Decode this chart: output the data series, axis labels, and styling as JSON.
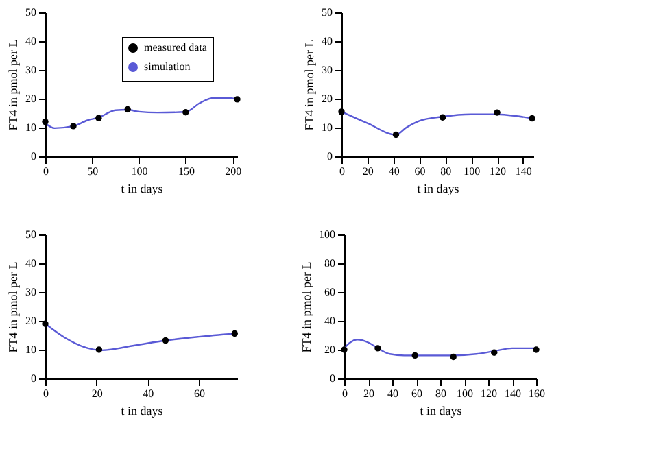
{
  "chart_data": [
    {
      "type": "line",
      "xlabel": "t in days",
      "ylabel": "FT4 in pmol per L",
      "xlim": [
        0,
        205
      ],
      "ylim": [
        0,
        50
      ],
      "xticks": [
        0,
        50,
        100,
        150,
        200
      ],
      "yticks": [
        0,
        10,
        20,
        30,
        40,
        50
      ],
      "grid": false,
      "legend": "top right",
      "series": [
        {
          "name": "measured data",
          "type": "scatter",
          "marker": "circle",
          "color": "#000000",
          "x": [
            0,
            30,
            57,
            88,
            150,
            205
          ],
          "values": [
            12,
            10.5,
            13.3,
            16.3,
            15.3,
            19.8
          ]
        },
        {
          "name": "simulation",
          "type": "line",
          "color": "#5a5ad6",
          "x": [
            0,
            10,
            30,
            45,
            57,
            75,
            88,
            100,
            120,
            150,
            165,
            180,
            195,
            205
          ],
          "values": [
            11.5,
            9.8,
            10.5,
            12.5,
            13.5,
            16,
            16.2,
            15.5,
            15.2,
            15.4,
            18.5,
            20.3,
            20.3,
            19.8
          ]
        }
      ]
    },
    {
      "type": "line",
      "xlabel": "t in days",
      "ylabel": "FT4 in pmol per L",
      "xlim": [
        0,
        148
      ],
      "ylim": [
        0,
        50
      ],
      "xticks": [
        0,
        20,
        40,
        60,
        80,
        100,
        120,
        140
      ],
      "yticks": [
        0,
        10,
        20,
        30,
        40,
        50
      ],
      "grid": false,
      "series": [
        {
          "type": "scatter",
          "marker": "circle",
          "color": "#000000",
          "x": [
            0,
            42,
            78,
            120,
            147
          ],
          "values": [
            15.5,
            7.5,
            13.5,
            15.2,
            13.2
          ]
        },
        {
          "type": "line",
          "color": "#5a5ad6",
          "x": [
            0,
            20,
            42,
            50,
            60,
            78,
            100,
            120,
            135,
            147
          ],
          "values": [
            15.5,
            11.5,
            7.5,
            10,
            12.3,
            13.8,
            14.6,
            14.6,
            14,
            13.2
          ]
        }
      ]
    },
    {
      "type": "line",
      "xlabel": "t in days",
      "ylabel": "FT4 in pmol per L",
      "xlim": [
        0,
        75
      ],
      "ylim": [
        0,
        50
      ],
      "xticks": [
        0,
        20,
        40,
        60
      ],
      "yticks": [
        0,
        10,
        20,
        30,
        40,
        50
      ],
      "grid": false,
      "series": [
        {
          "type": "scatter",
          "marker": "circle",
          "color": "#000000",
          "x": [
            0,
            21,
            47,
            74
          ],
          "values": [
            19,
            10,
            13.2,
            15.6
          ]
        },
        {
          "type": "line",
          "color": "#5a5ad6",
          "x": [
            0,
            8,
            15,
            22,
            35,
            47,
            60,
            74
          ],
          "values": [
            19,
            14,
            11,
            9.8,
            11.5,
            13.2,
            14.5,
            15.6
          ]
        }
      ]
    },
    {
      "type": "line",
      "xlabel": "t in days",
      "ylabel": "FT4 in pmol per L",
      "xlim": [
        0,
        160
      ],
      "ylim": [
        0,
        100
      ],
      "xticks": [
        0,
        20,
        40,
        60,
        80,
        100,
        120,
        140,
        160
      ],
      "yticks": [
        0,
        20,
        40,
        60,
        80,
        100
      ],
      "grid": false,
      "series": [
        {
          "type": "scatter",
          "marker": "circle",
          "color": "#000000",
          "x": [
            0,
            28,
            59,
            91,
            125,
            160
          ],
          "values": [
            20,
            21,
            16,
            15,
            18,
            20
          ]
        },
        {
          "type": "line",
          "color": "#5a5ad6",
          "x": [
            0,
            5,
            11,
            20,
            28,
            38,
            50,
            70,
            91,
            110,
            125,
            140,
            160
          ],
          "values": [
            21,
            25,
            27,
            25,
            21,
            17,
            16,
            16,
            16,
            17,
            19,
            21,
            21
          ]
        }
      ]
    }
  ]
}
